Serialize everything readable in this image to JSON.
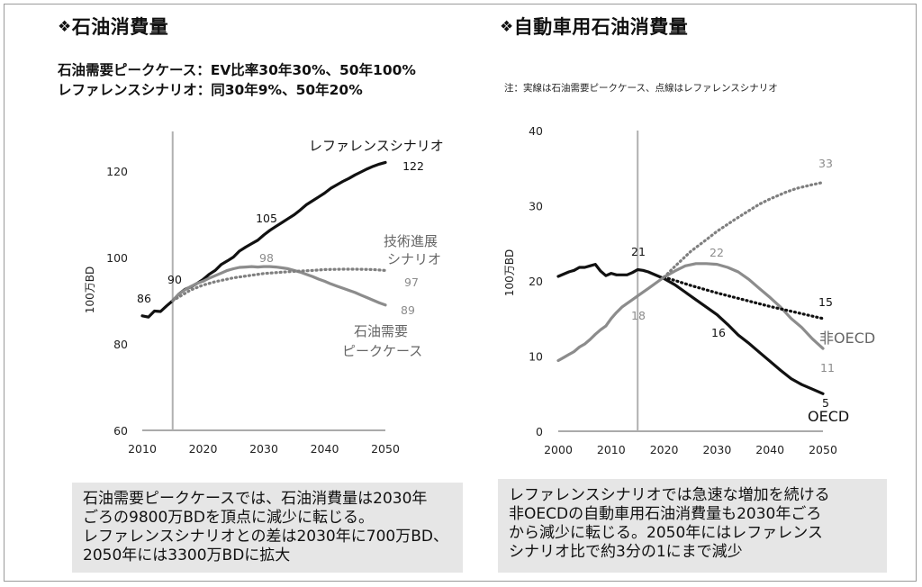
{
  "left_panel": {
    "title": "石油消費量",
    "subtitle_lines": [
      "石油需要ピークケース：EV比率30年30%、50年100%",
      "レファレンスシナリオ：同30年9%、50年20%"
    ],
    "caption_lines": [
      "石油需要ピークケースでは、石油消費量は2030年",
      "ごろの9800万BDを頂点に減少に転じる。",
      "レファレンスシナリオとの差は2030年に700万BD、",
      "2050年には3300万BDに拡大"
    ]
  },
  "right_panel": {
    "title": "自動車用石油消費量",
    "note": "注：実線は石油需要ピークケース、点線はレファレンスシナリオ",
    "caption_lines": [
      "レファレンスシナリオでは急速な増加を続ける",
      "非OECDの自動車用石油消費量も2030年ごろ",
      "から減少に転じる。2050年にはレファレンス",
      "シナリオ比で約3分の1にまで減少"
    ]
  },
  "title_icon": "four-diamond-icon",
  "colors": {
    "black": "#111111",
    "gray": "#8c8c8c",
    "dotted": "#7f7f7f",
    "vline": "#b0b0b0"
  },
  "chart_data": [
    {
      "type": "line",
      "ylabel": "100万BD",
      "xlim": [
        2010,
        2050
      ],
      "ylim": [
        60,
        125
      ],
      "xticks": [
        2010,
        2020,
        2030,
        2040,
        2050
      ],
      "yticks": [
        60,
        80,
        100,
        120
      ],
      "vline_x": 2015,
      "series": [
        {
          "name": "レファレンスシナリオ",
          "style": "solid-black",
          "x": [
            2010,
            2011,
            2012,
            2013,
            2014,
            2015,
            2016,
            2017,
            2018,
            2019,
            2020,
            2021,
            2022,
            2023,
            2024,
            2025,
            2026,
            2027,
            2028,
            2029,
            2030,
            2031,
            2032,
            2033,
            2034,
            2035,
            2036,
            2037,
            2038,
            2039,
            2040,
            2041,
            2042,
            2043,
            2044,
            2045,
            2046,
            2047,
            2048,
            2049,
            2050
          ],
          "y": [
            86.5,
            86.2,
            87.6,
            87.5,
            88.8,
            90.0,
            91.5,
            92.6,
            93.2,
            94.0,
            94.9,
            96.1,
            97.0,
            98.4,
            99.2,
            100.1,
            101.5,
            102.4,
            103.2,
            104.0,
            105.2,
            106.3,
            107.2,
            108.1,
            109.0,
            109.9,
            111.0,
            112.2,
            113.1,
            114.0,
            114.9,
            116.0,
            116.8,
            117.6,
            118.3,
            119.1,
            119.8,
            120.5,
            121.1,
            121.6,
            122.0
          ]
        },
        {
          "name": "石油需要ピークケース",
          "style": "solid-gray",
          "x": [
            2015,
            2016,
            2017,
            2018,
            2019,
            2020,
            2021,
            2022,
            2023,
            2024,
            2025,
            2026,
            2027,
            2028,
            2029,
            2030,
            2031,
            2032,
            2033,
            2034,
            2035,
            2036,
            2037,
            2038,
            2039,
            2040,
            2041,
            2042,
            2043,
            2044,
            2045,
            2046,
            2047,
            2048,
            2049,
            2050
          ],
          "y": [
            90.0,
            91.5,
            92.5,
            93.3,
            94.0,
            94.5,
            95.2,
            95.8,
            96.4,
            97.0,
            97.4,
            97.7,
            97.8,
            97.9,
            97.8,
            97.9,
            97.9,
            97.8,
            97.6,
            97.4,
            97.0,
            96.6,
            96.1,
            95.6,
            95.0,
            94.5,
            93.9,
            93.4,
            92.9,
            92.4,
            91.9,
            91.3,
            90.7,
            90.1,
            89.5,
            89.0
          ]
        },
        {
          "name": "技術進展シナリオ",
          "style": "dotted",
          "x": [
            2015,
            2018,
            2020,
            2022,
            2025,
            2028,
            2030,
            2033,
            2035,
            2038,
            2040,
            2043,
            2045,
            2048,
            2050
          ],
          "y": [
            90.0,
            92.5,
            93.6,
            94.4,
            95.3,
            95.9,
            96.3,
            96.6,
            96.8,
            97.0,
            97.2,
            97.3,
            97.3,
            97.2,
            97.0
          ]
        }
      ],
      "annotations": [
        {
          "text": "86",
          "x": 2010,
          "y": 86
        },
        {
          "text": "90",
          "x": 2015,
          "y": 90
        },
        {
          "text": "105",
          "x": 2030,
          "y": 105
        },
        {
          "text": "98",
          "x": 2030,
          "y": 98
        },
        {
          "text": "122",
          "x": 2050,
          "y": 122
        },
        {
          "text": "97",
          "x": 2050,
          "y": 97
        },
        {
          "text": "89",
          "x": 2050,
          "y": 89
        }
      ],
      "series_labels": [
        {
          "lines": [
            "レファレンスシナリオ"
          ],
          "color": "black"
        },
        {
          "lines": [
            "技術進展",
            "シナリオ"
          ],
          "color": "gray"
        },
        {
          "lines": [
            "石油需要",
            "ピークケース"
          ],
          "color": "gray"
        }
      ]
    },
    {
      "type": "line",
      "ylabel": "100万BD",
      "xlim": [
        2000,
        2050
      ],
      "ylim": [
        0,
        40
      ],
      "xticks": [
        2000,
        2010,
        2020,
        2030,
        2040,
        2050
      ],
      "yticks": [
        0,
        10,
        20,
        30,
        40
      ],
      "vline_x": 2015,
      "series": [
        {
          "name": "OECD",
          "style": "solid-black",
          "x": [
            2000,
            2001,
            2002,
            2003,
            2004,
            2005,
            2006,
            2007,
            2008,
            2009,
            2010,
            2011,
            2012,
            2013,
            2014,
            2015,
            2016,
            2017,
            2018,
            2019,
            2020,
            2022,
            2024,
            2026,
            2028,
            2030,
            2032,
            2034,
            2036,
            2038,
            2040,
            2042,
            2044,
            2046,
            2048,
            2050
          ],
          "y": [
            20.6,
            20.9,
            21.2,
            21.4,
            21.8,
            21.8,
            22.0,
            22.2,
            21.3,
            20.7,
            21.0,
            20.8,
            20.8,
            20.8,
            21.1,
            21.5,
            21.4,
            21.2,
            20.9,
            20.6,
            20.3,
            19.5,
            18.5,
            17.5,
            16.5,
            15.5,
            14.2,
            12.8,
            11.7,
            10.5,
            9.3,
            8.1,
            7.0,
            6.2,
            5.6,
            5.0
          ]
        },
        {
          "name": "非OECD",
          "style": "solid-gray",
          "x": [
            2000,
            2001,
            2002,
            2003,
            2004,
            2005,
            2006,
            2007,
            2008,
            2009,
            2010,
            2011,
            2012,
            2013,
            2014,
            2015,
            2017,
            2019,
            2020,
            2022,
            2024,
            2026,
            2028,
            2030,
            2032,
            2034,
            2036,
            2038,
            2040,
            2042,
            2044,
            2046,
            2048,
            2050
          ],
          "y": [
            9.4,
            9.8,
            10.2,
            10.6,
            11.2,
            11.6,
            12.2,
            12.9,
            13.5,
            14.0,
            15.0,
            15.8,
            16.5,
            17.0,
            17.5,
            18.0,
            19.0,
            20.0,
            20.5,
            21.3,
            22.0,
            22.3,
            22.3,
            22.2,
            21.8,
            21.2,
            20.2,
            19.0,
            17.8,
            16.5,
            15.0,
            13.8,
            12.3,
            11.0
          ]
        },
        {
          "name": "OECD（レファレンス）",
          "style": "dotted-black",
          "x": [
            2020,
            2025,
            2030,
            2035,
            2040,
            2045,
            2050
          ],
          "y": [
            20.5,
            19.4,
            18.4,
            17.5,
            16.6,
            15.8,
            15.0
          ]
        },
        {
          "name": "非OECD（レファレンス）",
          "style": "dotted-gray",
          "x": [
            2020,
            2022,
            2025,
            2028,
            2030,
            2033,
            2035,
            2038,
            2040,
            2043,
            2045,
            2048,
            2050
          ],
          "y": [
            20.5,
            21.9,
            23.9,
            25.5,
            26.6,
            28.0,
            28.9,
            30.2,
            30.9,
            31.8,
            32.3,
            32.8,
            33.1
          ]
        }
      ],
      "annotations": [
        {
          "text": "21",
          "x": 2015,
          "y": 21
        },
        {
          "text": "18",
          "x": 2015,
          "y": 18
        },
        {
          "text": "22",
          "x": 2030,
          "y": 22
        },
        {
          "text": "16",
          "x": 2030,
          "y": 16
        },
        {
          "text": "33",
          "x": 2050,
          "y": 33
        },
        {
          "text": "15",
          "x": 2050,
          "y": 15
        },
        {
          "text": "11",
          "x": 2050,
          "y": 11
        },
        {
          "text": "5",
          "x": 2050,
          "y": 5
        }
      ],
      "series_labels": [
        {
          "lines": [
            "非OECD"
          ],
          "color": "gray"
        },
        {
          "lines": [
            "OECD"
          ],
          "color": "black"
        }
      ]
    }
  ]
}
